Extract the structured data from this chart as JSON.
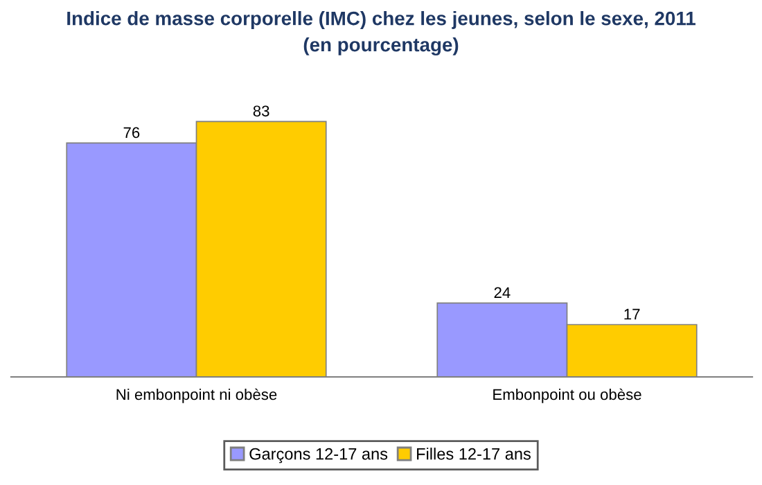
{
  "chart_data": {
    "type": "bar",
    "title": "Indice de masse corporelle (IMC) chez les jeunes, selon le sexe, 2011\n(en pourcentage)",
    "categories": [
      "Ni embonpoint ni obèse",
      "Embonpoint ou obèse"
    ],
    "series": [
      {
        "name": "Garçons 12-17 ans",
        "color": "#9999ff",
        "values": [
          76,
          24
        ]
      },
      {
        "name": "Filles 12-17 ans",
        "color": "#ffcc00",
        "values": [
          83,
          17
        ]
      }
    ],
    "data_labels": true,
    "legend": "bottom",
    "grid": false
  }
}
